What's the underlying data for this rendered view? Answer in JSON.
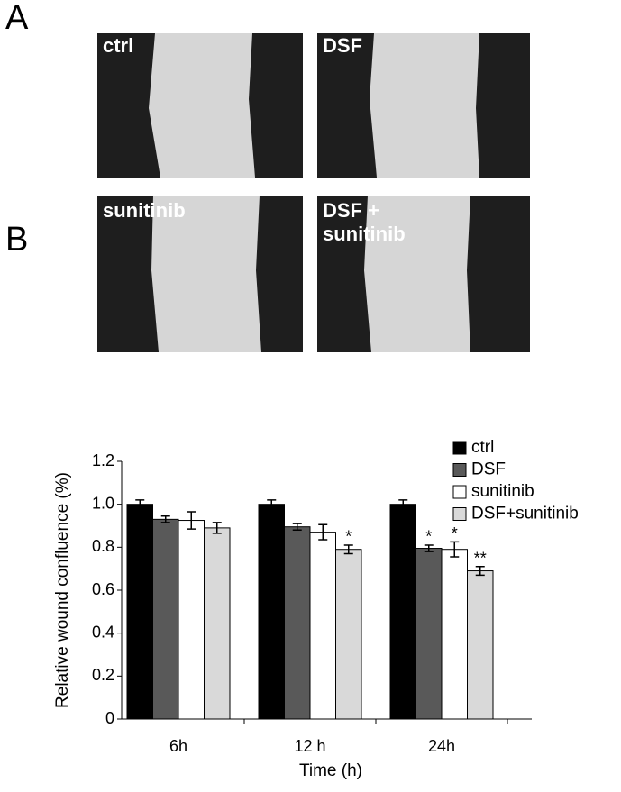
{
  "panel_labels": [
    "A",
    "B"
  ],
  "panel_a": {
    "labels": [
      [
        "ctrl"
      ],
      [
        "DSF"
      ],
      [
        "sunitinib"
      ],
      [
        "DSF +",
        "sunitinib"
      ]
    ]
  },
  "chart_data": {
    "type": "bar",
    "x_label": "Time (h)",
    "y_label": "Relative wound confluence (%)",
    "categories": [
      "6h",
      "12 h",
      "24h"
    ],
    "series": [
      {
        "name": "ctrl",
        "color": "#000000",
        "values": [
          1.0,
          1.0,
          1.0
        ],
        "errors": [
          0.02,
          0.02,
          0.02
        ],
        "significance": [
          null,
          null,
          null
        ]
      },
      {
        "name": "DSF",
        "color": "#595959",
        "values": [
          0.93,
          0.895,
          0.795
        ],
        "errors": [
          0.015,
          0.015,
          0.015
        ],
        "significance": [
          null,
          null,
          "*"
        ]
      },
      {
        "name": "sunitinib",
        "color": "#ffffff",
        "values": [
          0.925,
          0.87,
          0.79
        ],
        "errors": [
          0.04,
          0.035,
          0.035
        ],
        "significance": [
          null,
          null,
          "*"
        ]
      },
      {
        "name": "DSF+sunitinib",
        "color": "#d9d9d9",
        "values": [
          0.89,
          0.79,
          0.69
        ],
        "errors": [
          0.025,
          0.02,
          0.02
        ],
        "significance": [
          null,
          "*",
          "**"
        ]
      }
    ],
    "ylim": [
      0,
      1.2
    ],
    "yticks": [
      0,
      0.2,
      0.4,
      0.6,
      0.8,
      {
        "value": 1,
        "label": "1.0"
      },
      1.2
    ],
    "grid": false,
    "legend": "upper right"
  }
}
